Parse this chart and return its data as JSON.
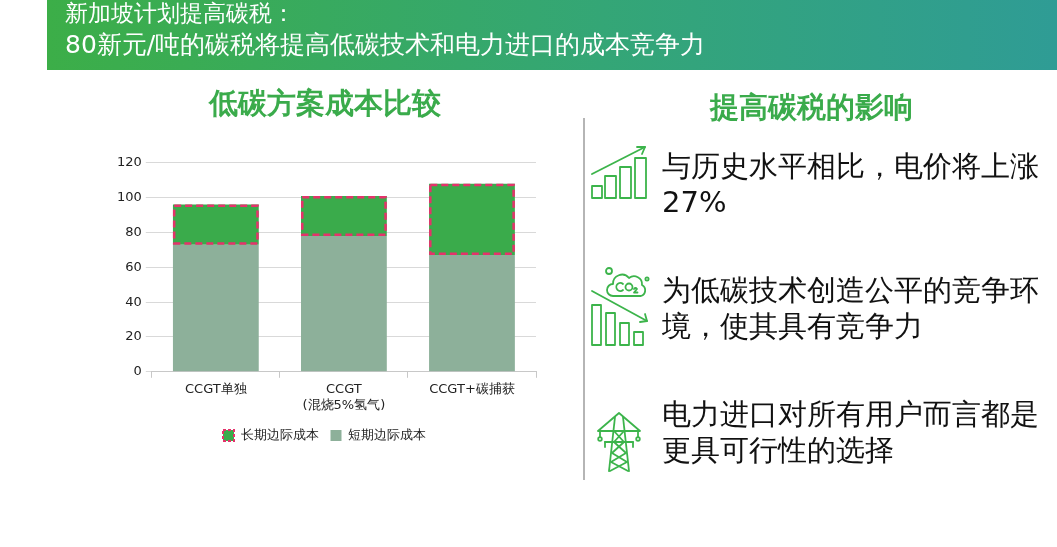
{
  "chart_data": [
    {
      "type": "other",
      "title": "新加坡计划提高碳税：",
      "subtitle": "80新元/吨的碳税将提高低碳技术和电力进口的成本竞争力"
    },
    {
      "type": "bar",
      "title": "低碳方案成本比较",
      "categories": [
        "CCGT单独",
        "CCGT\n(混烧5%氢气)",
        "CCGT+碳捕获"
      ],
      "stacked": true,
      "series": [
        {
          "name": "短期边际成本",
          "color": "#8db09a",
          "values": [
            73,
            78,
            67
          ]
        },
        {
          "name": "长期边际成本",
          "color": "#3aab4b",
          "values": [
            23,
            23,
            41
          ],
          "line_style": "dashed"
        }
      ],
      "ylim": [
        0,
        120
      ],
      "yticks": [
        0,
        20,
        40,
        60,
        80,
        100,
        120
      ],
      "grid": "y",
      "legend": "bottom"
    },
    {
      "type": "other",
      "title": "提高碳税的影响",
      "annotations": [
        "与历史水平相比，电价将上涨27%",
        "为低碳技术创造公平的竞争环境，使其具有竞争力",
        "电力进口对所有用户而言都是更具可行性的选择"
      ]
    }
  ]
}
